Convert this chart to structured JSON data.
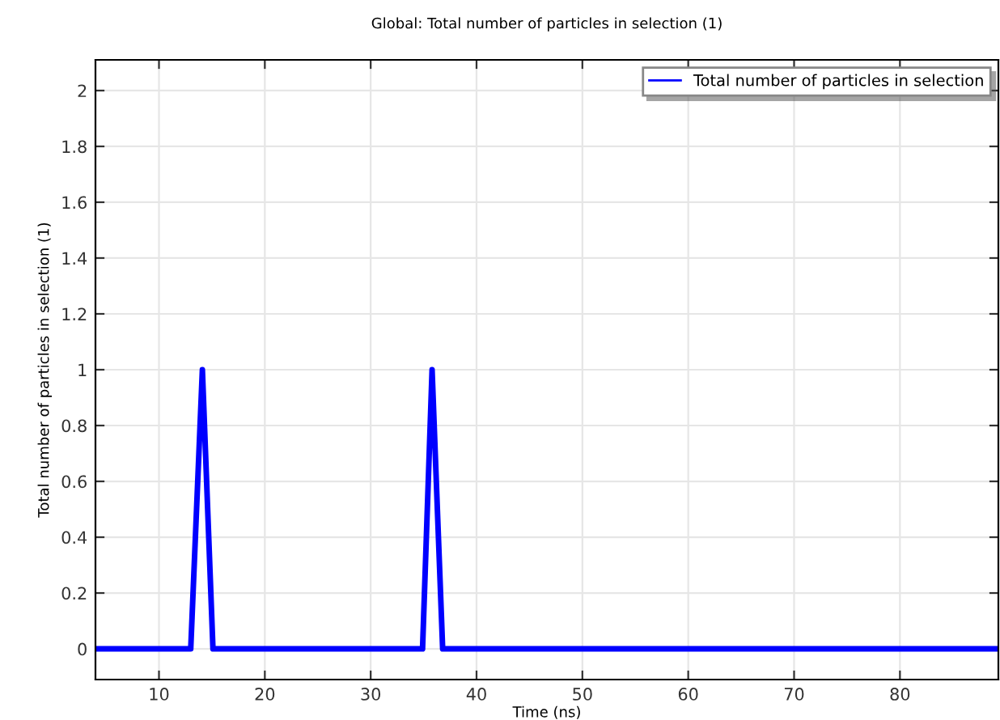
{
  "chart_data": {
    "type": "line",
    "title": "Global: Total number of particles in selection (1)",
    "xlabel": "Time (ns)",
    "ylabel": "Total number of particles in selection (1)",
    "x": [
      4,
      13,
      14.1,
      15.1,
      34.9,
      35.8,
      36.8,
      89.3
    ],
    "series": [
      {
        "name": "Total number of particles in selection",
        "color": "#0000ff",
        "values": [
          0,
          0,
          1,
          0,
          0,
          1,
          0,
          0
        ]
      }
    ],
    "xlim": [
      4,
      89.3
    ],
    "xticks": [
      10,
      20,
      30,
      40,
      50,
      60,
      70,
      80
    ],
    "ylim": [
      -0.11,
      2.11
    ],
    "yticks": [
      0,
      0.2,
      0.4,
      0.6,
      0.8,
      1,
      1.2,
      1.4,
      1.6,
      1.8,
      2
    ],
    "grid": true,
    "legend": "top right"
  }
}
